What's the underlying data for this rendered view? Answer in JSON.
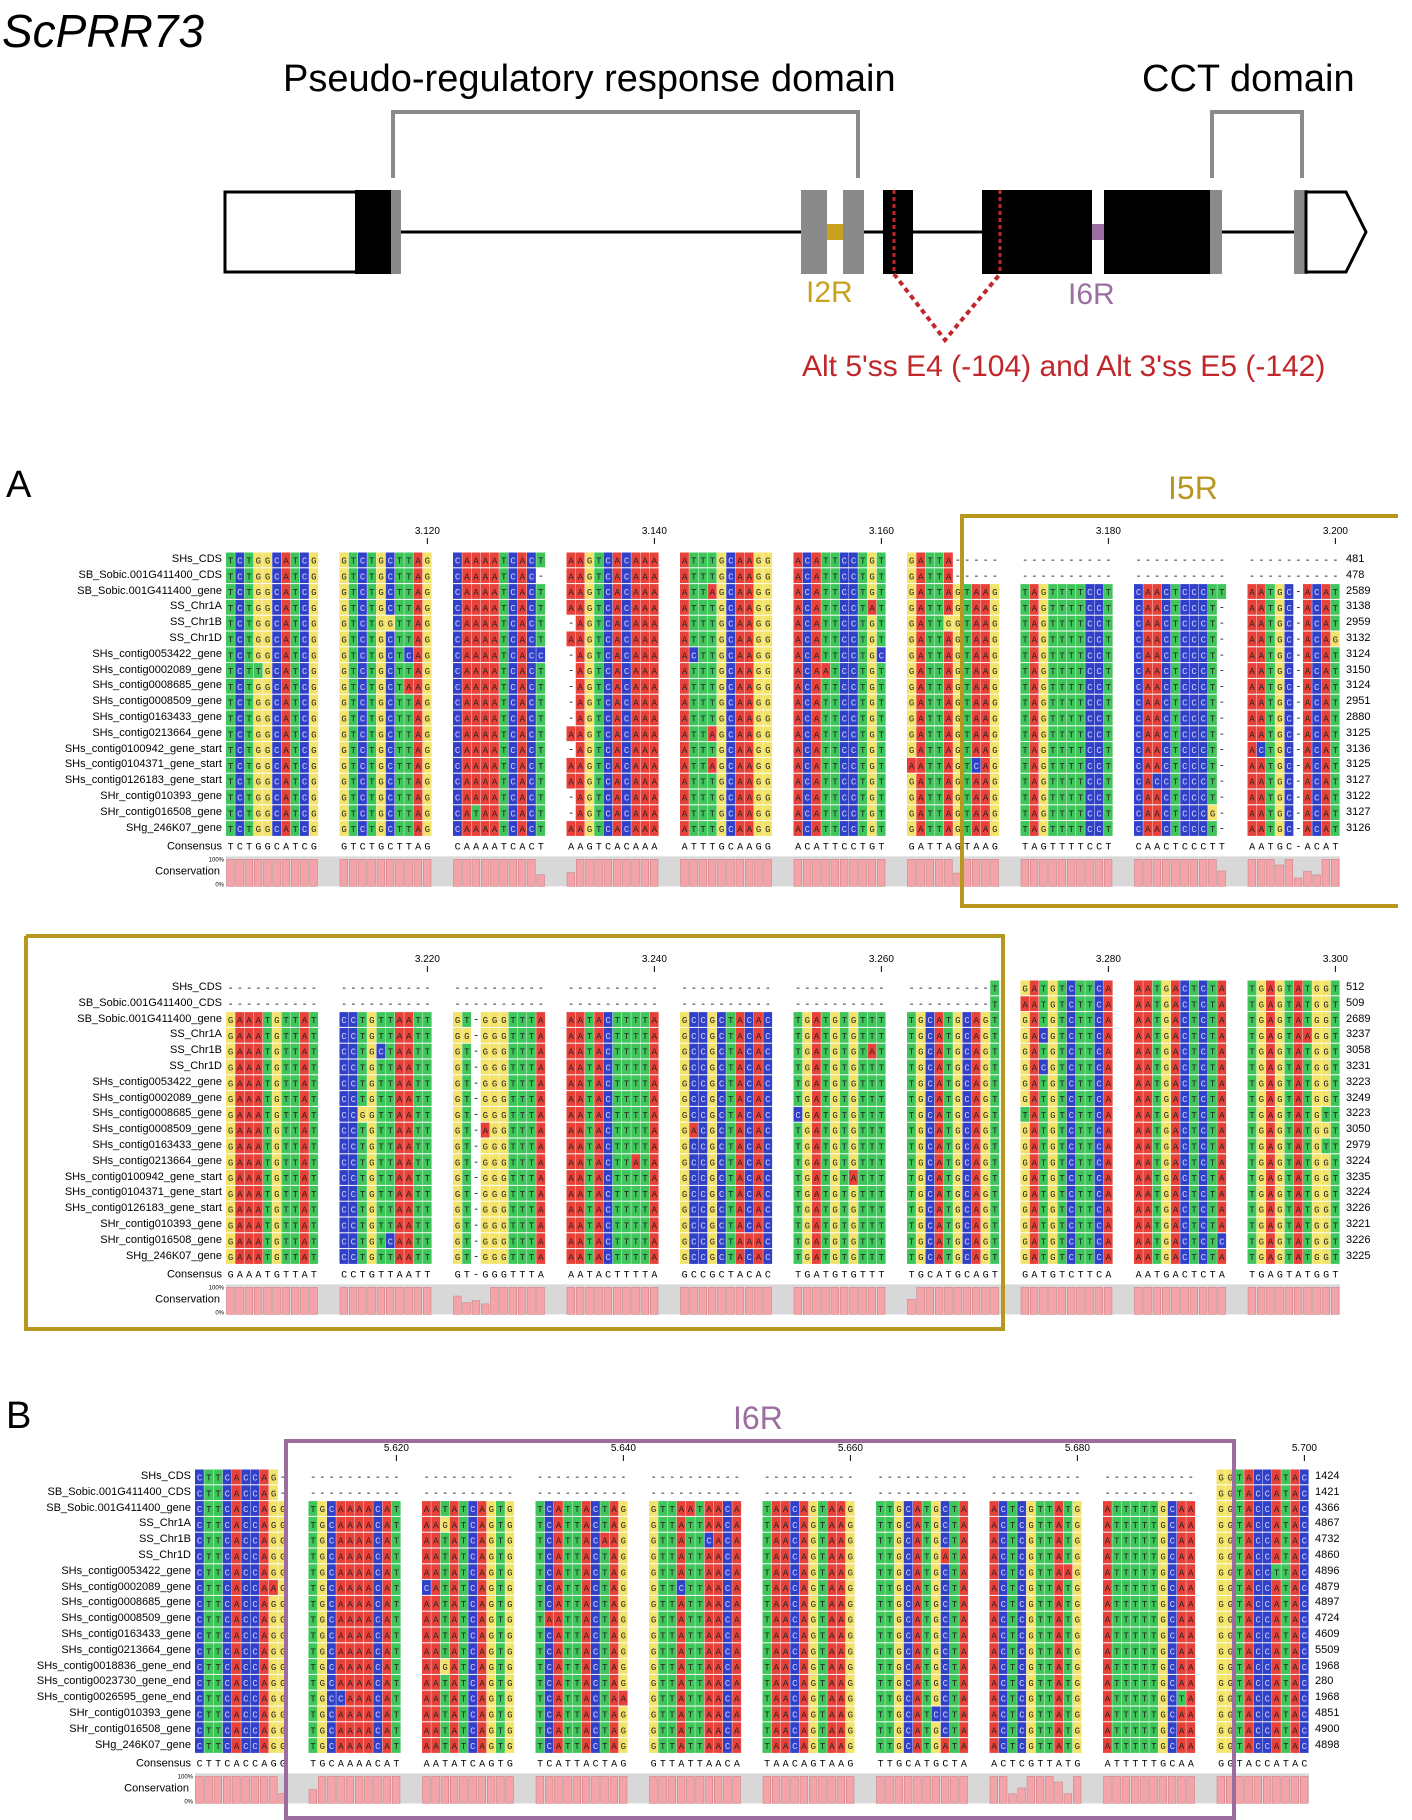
{
  "title": "ScPRR73",
  "gene_diagram": {
    "prr_domain_label": "Pseudo-regulatory response domain",
    "cct_domain_label": "CCT domain",
    "i2r_label": "I2R",
    "i6r_label": "I6R",
    "alt_splice_label": "Alt 5'ss E4 (-104) and Alt 3'ss E5 (-142)",
    "colors": {
      "i2r": "#c8a21e",
      "i6r": "#9c6fa3",
      "alt": "#c0262a",
      "domain_bracket": "#8a8a8a"
    }
  },
  "panel_a": {
    "letter": "A",
    "region_label": "I5R",
    "region_color": "#b8971f",
    "top": {
      "ruler": [
        "3.120",
        "3.140",
        "3.160",
        "3.180",
        "3.200"
      ],
      "seq_names": [
        "SHs_CDS",
        "SB_Sobic.001G411400_CDS",
        "SB_Sobic.001G411400_gene",
        "SS_Chr1A",
        "SS_Chr1B",
        "SS_Chr1D",
        "SHs_contig0053422_gene",
        "SHs_contig0002089_gene",
        "SHs_contig0008685_gene",
        "SHs_contig0008509_gene",
        "SHs_contig0163433_gene",
        "SHs_contig0213664_gene",
        "SHs_contig0100942_gene_start",
        "SHs_contig0104371_gene_start",
        "SHs_contig0126183_gene_start",
        "SHr_contig010393_gene",
        "SHr_contig016508_gene",
        "SHg_246K07_gene"
      ],
      "end_numbers": [
        "481",
        "478",
        "2589",
        "3138",
        "2959",
        "3132",
        "3124",
        "3150",
        "3124",
        "2951",
        "2880",
        "3125",
        "3136",
        "3125",
        "3127",
        "3122",
        "3127",
        "3126"
      ],
      "consensus_label": "Consensus",
      "consensus": "TCTGGCATCG GTCTGCTTAG CAAAATCACT AAGTCACAAA ATTTGCAAGG ACATTCCTGT GATTAGTAAG TAGTTTTCCT CAACTCCCTT AATGC-ACAT",
      "conservation_label": "Conservation",
      "pct_100": "100%",
      "pct_0": "0%"
    },
    "bottom": {
      "ruler": [
        "3.220",
        "3.240",
        "3.260",
        "3.280",
        "3.300"
      ],
      "seq_names": [
        "SHs_CDS",
        "SB_Sobic.001G411400_CDS",
        "SB_Sobic.001G411400_gene",
        "SS_Chr1A",
        "SS_Chr1B",
        "SS_Chr1D",
        "SHs_contig0053422_gene",
        "SHs_contig0002089_gene",
        "SHs_contig0008685_gene",
        "SHs_contig0008509_gene",
        "SHs_contig0163433_gene",
        "SHs_contig0213664_gene",
        "SHs_contig0100942_gene_start",
        "SHs_contig0104371_gene_start",
        "SHs_contig0126183_gene_start",
        "SHr_contig010393_gene",
        "SHr_contig016508_gene",
        "SHg_246K07_gene"
      ],
      "end_numbers": [
        "512",
        "509",
        "2689",
        "3237",
        "3058",
        "3231",
        "3223",
        "3249",
        "3223",
        "3050",
        "2979",
        "3224",
        "3235",
        "3224",
        "3226",
        "3221",
        "3226",
        "3225"
      ],
      "consensus_label": "Consensus",
      "consensus": "GAAATGTTAT CCTGTTAATT GT-GGGTTTA AATACTTTTA GCCGCTACAC TGATGTGTTT TGCATGCAGT GATGTCTTCA AATGACTCTA TGAGTATGGT",
      "conservation_label": "Conservation",
      "pct_100": "100%",
      "pct_0": "0%"
    }
  },
  "panel_b": {
    "letter": "B",
    "region_label": "I6R",
    "region_color": "#9a6d9e",
    "ruler": [
      "5.620",
      "5.640",
      "5.660",
      "5.680",
      "5.700"
    ],
    "seq_names": [
      "SHs_CDS",
      "SB_Sobic.001G411400_CDS",
      "SB_Sobic.001G411400_gene",
      "SS_Chr1A",
      "SS_Chr1B",
      "SS_Chr1D",
      "SHs_contig0053422_gene",
      "SHs_contig0002089_gene",
      "SHs_contig0008685_gene",
      "SHs_contig0008509_gene",
      "SHs_contig0163433_gene",
      "SHs_contig0213664_gene",
      "SHs_contig0018836_gene_end",
      "SHs_contig0023730_gene_end",
      "SHs_contig0026595_gene_end",
      "SHr_contig010393_gene",
      "SHr_contig016508_gene",
      "SHg_246K07_gene"
    ],
    "end_numbers": [
      "1424",
      "1421",
      "4366",
      "4867",
      "4732",
      "4860",
      "4896",
      "4879",
      "4897",
      "4724",
      "4609",
      "5509",
      "1968",
      "280",
      "1968",
      "4851",
      "4900",
      "4898"
    ],
    "consensus_label": "Consensus",
    "consensus": "CTTCACCAGG TGCAAAACAT AATATCAGTG TCATTACTAG GTTATTAACA TAACAGTAAG TTGCATGCTA ACTCGTTATG ATTTTTGCAA GGTACCATAC",
    "conservation_label": "Conservation",
    "pct_100": "100%",
    "pct_0": "0%"
  },
  "nucleotide_colors": {
    "A": "#e8413a",
    "C": "#3140c8",
    "G": "#f3e36a",
    "T": "#3fc65a",
    "gap": "#ffffff",
    "conservation": "#f4a3a8"
  }
}
